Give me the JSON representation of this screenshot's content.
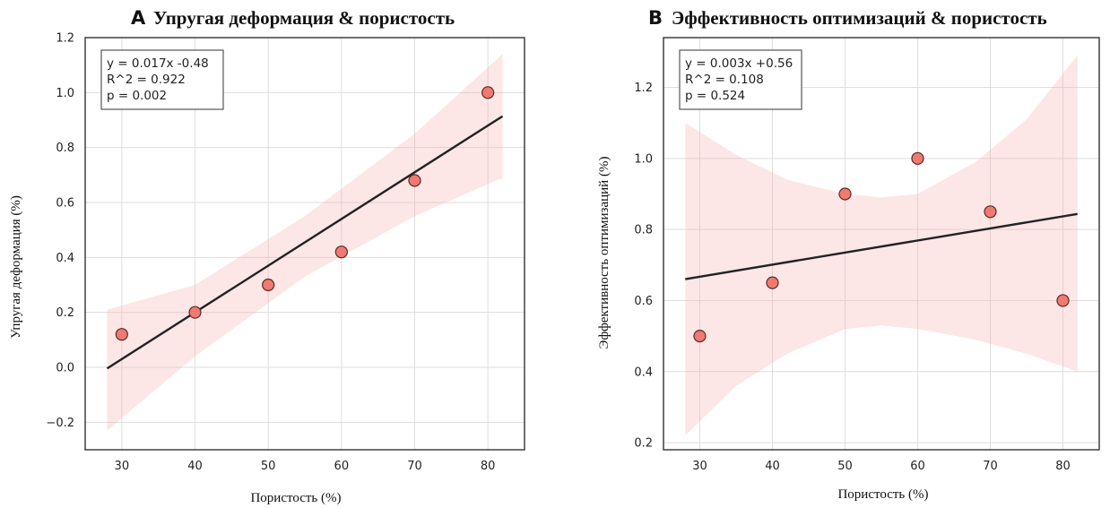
{
  "chart_data": [
    {
      "type": "scatter",
      "panel_letter": "A",
      "title": "Упругая деформация & пористость",
      "xlabel": "Пористость (%)",
      "ylabel": "Упругая деформация (%)",
      "xlim": [
        25,
        85
      ],
      "ylim": [
        -0.3,
        1.2
      ],
      "xticks": [
        30,
        40,
        50,
        60,
        70,
        80
      ],
      "yticks": [
        -0.2,
        0.0,
        0.2,
        0.4,
        0.6,
        0.8,
        1.0,
        1.2
      ],
      "ytick_labels": [
        "−0.2",
        "0.0",
        "0.2",
        "0.4",
        "0.6",
        "0.8",
        "1.0",
        "1.2"
      ],
      "grid": true,
      "x": [
        30,
        40,
        50,
        60,
        70,
        80
      ],
      "y": [
        0.12,
        0.2,
        0.3,
        0.42,
        0.68,
        1.0
      ],
      "fit": {
        "slope": 0.017,
        "intercept": -0.48,
        "x_range": [
          28,
          82
        ]
      },
      "ci_band": {
        "x": [
          28,
          40,
          55,
          70,
          82
        ],
        "upper": [
          0.21,
          0.3,
          0.55,
          0.85,
          1.14
        ],
        "lower": [
          -0.23,
          0.04,
          0.33,
          0.55,
          0.69
        ]
      },
      "annotation": [
        "y = 0.017x -0.48",
        "R^2 = 0.922",
        "p = 0.002"
      ],
      "colors": {
        "points": "#ee7a72",
        "band": "#f6a5a5",
        "line": "#222222"
      }
    },
    {
      "type": "scatter",
      "panel_letter": "B",
      "title": "Эффективность оптимизаций & пористость",
      "xlabel": "Пористость (%)",
      "ylabel": "Эффективность оптимизаций (%)",
      "xlim": [
        25,
        85
      ],
      "ylim": [
        0.18,
        1.34
      ],
      "xticks": [
        30,
        40,
        50,
        60,
        70,
        80
      ],
      "yticks": [
        0.2,
        0.4,
        0.6,
        0.8,
        1.0,
        1.2
      ],
      "ytick_labels": [
        "0.2",
        "0.4",
        "0.6",
        "0.8",
        "1.0",
        "1.2"
      ],
      "grid": true,
      "x": [
        30,
        40,
        50,
        60,
        70,
        80
      ],
      "y": [
        0.5,
        0.65,
        0.9,
        1.0,
        0.85,
        0.6
      ],
      "fit": {
        "slope": 0.0034,
        "intercept": 0.565,
        "x_range": [
          28,
          82
        ]
      },
      "ci_band": {
        "x": [
          28,
          35,
          42,
          50,
          55,
          60,
          68,
          75,
          82
        ],
        "upper": [
          1.1,
          1.01,
          0.94,
          0.9,
          0.89,
          0.9,
          0.99,
          1.11,
          1.29
        ],
        "lower": [
          0.22,
          0.36,
          0.45,
          0.52,
          0.53,
          0.52,
          0.49,
          0.45,
          0.4
        ]
      },
      "annotation": [
        "y = 0.003x +0.56",
        "R^2 = 0.108",
        "p = 0.524"
      ],
      "colors": {
        "points": "#ee7a72",
        "band": "#f6a5a5",
        "line": "#222222"
      }
    }
  ]
}
